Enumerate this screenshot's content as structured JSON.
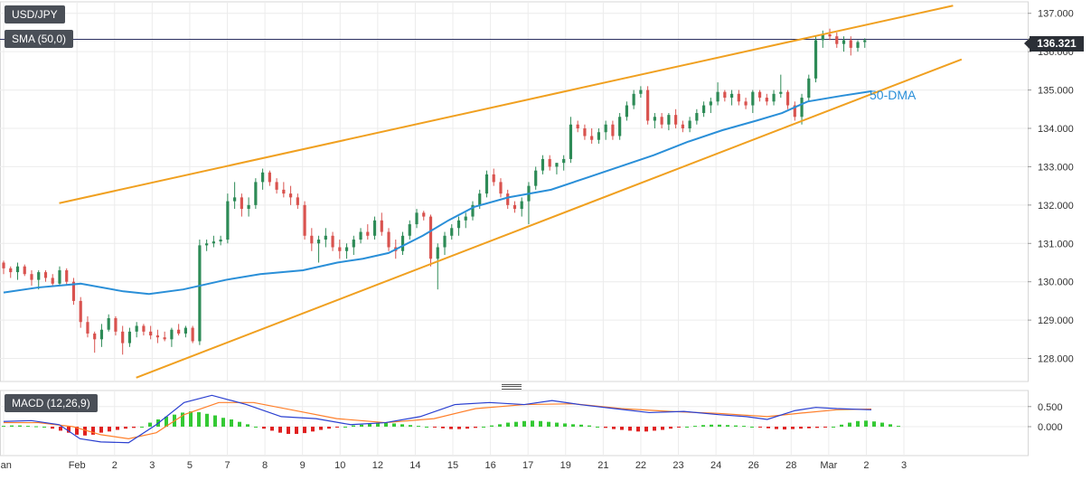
{
  "symbol": "USD/JPY",
  "indicator_sma": "SMA (50,0)",
  "indicator_macd": "MACD (12,26,9)",
  "last_price": "136.321",
  "dma_label": "50-DMA",
  "colors": {
    "up": "#2e8b57",
    "down": "#d9534f",
    "sma": "#2a8fd8",
    "trend": "#f0a020",
    "macd_line": "#2a3fd0",
    "signal_line": "#ff7f2a",
    "hist_pos": "#34c934",
    "hist_neg": "#e02020",
    "tag_bg": "#4a4f57"
  },
  "chart_data": [
    {
      "type": "candlestick",
      "title": "USD/JPY",
      "ylim": [
        127.4,
        137.3
      ],
      "y_ticks": [
        "137.000",
        "136.000",
        "135.000",
        "134.000",
        "133.000",
        "132.000",
        "131.000",
        "130.000",
        "129.000",
        "128.000"
      ],
      "y_tick_values": [
        137,
        136,
        135,
        134,
        133,
        132,
        131,
        130,
        129,
        128
      ],
      "x_tick_labels": [
        "Jan",
        "Feb",
        "2",
        "3",
        "5",
        "7",
        "8",
        "9",
        "10",
        "12",
        "14",
        "15",
        "16",
        "17",
        "19",
        "21",
        "22",
        "23",
        "24",
        "26",
        "28",
        "Mar",
        "2",
        "3"
      ],
      "x_tick_index": [
        0,
        13,
        23,
        33,
        43,
        53,
        63,
        73,
        83,
        93,
        103,
        113,
        123,
        133,
        143,
        153,
        163,
        173,
        183,
        193,
        203,
        213,
        223,
        233
      ],
      "last_price": 136.321,
      "candles": [
        [
          130.5,
          130.55,
          130.2,
          130.35
        ],
        [
          130.35,
          130.4,
          130.1,
          130.25
        ],
        [
          130.25,
          130.5,
          130.05,
          130.4
        ],
        [
          130.4,
          130.45,
          130.15,
          130.2
        ],
        [
          130.2,
          130.3,
          129.9,
          130.05
        ],
        [
          130.05,
          130.3,
          129.8,
          130.25
        ],
        [
          130.25,
          130.3,
          130.0,
          130.1
        ],
        [
          130.1,
          130.2,
          129.9,
          129.95
        ],
        [
          129.95,
          130.4,
          129.9,
          130.3
        ],
        [
          130.3,
          130.35,
          129.9,
          130.0
        ],
        [
          130.0,
          130.1,
          129.4,
          129.5
        ],
        [
          129.5,
          129.6,
          128.8,
          128.95
        ],
        [
          128.95,
          129.1,
          128.55,
          128.65
        ],
        [
          128.65,
          128.7,
          128.15,
          128.5
        ],
        [
          128.5,
          128.9,
          128.3,
          128.75
        ],
        [
          128.75,
          129.15,
          128.7,
          129.05
        ],
        [
          129.05,
          129.1,
          128.6,
          128.7
        ],
        [
          128.7,
          128.85,
          128.1,
          128.4
        ],
        [
          128.4,
          128.8,
          128.3,
          128.7
        ],
        [
          128.7,
          128.95,
          128.55,
          128.85
        ],
        [
          128.85,
          128.9,
          128.6,
          128.7
        ],
        [
          128.7,
          128.85,
          128.5,
          128.6
        ],
        [
          128.6,
          128.75,
          128.4,
          128.55
        ],
        [
          128.55,
          128.7,
          128.45,
          128.5
        ],
        [
          128.5,
          128.8,
          128.3,
          128.75
        ],
        [
          128.75,
          128.9,
          128.6,
          128.65
        ],
        [
          128.65,
          128.85,
          128.55,
          128.8
        ],
        [
          128.8,
          128.85,
          128.4,
          128.45
        ],
        [
          128.45,
          131.1,
          128.35,
          130.95
        ],
        [
          130.95,
          131.1,
          130.8,
          131.0
        ],
        [
          131.0,
          131.2,
          130.9,
          131.05
        ],
        [
          131.05,
          131.2,
          130.95,
          131.1
        ],
        [
          131.1,
          132.3,
          131.0,
          132.1
        ],
        [
          132.1,
          132.6,
          131.9,
          132.2
        ],
        [
          132.2,
          132.3,
          131.7,
          131.9
        ],
        [
          131.9,
          132.2,
          131.7,
          132.0
        ],
        [
          132.0,
          132.7,
          131.9,
          132.6
        ],
        [
          132.6,
          132.95,
          132.4,
          132.85
        ],
        [
          132.85,
          132.9,
          132.5,
          132.6
        ],
        [
          132.6,
          132.7,
          132.3,
          132.4
        ],
        [
          132.4,
          132.6,
          132.2,
          132.3
        ],
        [
          132.3,
          132.5,
          132.0,
          132.2
        ],
        [
          132.2,
          132.3,
          131.9,
          132.0
        ],
        [
          132.0,
          132.1,
          131.1,
          131.2
        ],
        [
          131.2,
          131.4,
          130.8,
          131.0
        ],
        [
          131.0,
          131.2,
          130.5,
          131.1
        ],
        [
          131.1,
          131.4,
          130.9,
          131.2
        ],
        [
          131.2,
          131.3,
          130.8,
          130.9
        ],
        [
          130.9,
          131.1,
          130.6,
          130.8
        ],
        [
          130.8,
          131.0,
          130.6,
          130.9
        ],
        [
          130.9,
          131.2,
          130.7,
          131.1
        ],
        [
          131.1,
          131.4,
          131.0,
          131.3
        ],
        [
          131.3,
          131.5,
          131.1,
          131.2
        ],
        [
          131.2,
          131.7,
          131.1,
          131.6
        ],
        [
          131.6,
          131.8,
          131.2,
          131.3
        ],
        [
          131.3,
          131.4,
          130.8,
          130.9
        ],
        [
          130.9,
          131.1,
          130.6,
          130.8
        ],
        [
          130.8,
          131.3,
          130.7,
          131.2
        ],
        [
          131.2,
          131.6,
          131.1,
          131.5
        ],
        [
          131.5,
          131.9,
          131.4,
          131.8
        ],
        [
          131.8,
          131.85,
          131.6,
          131.7
        ],
        [
          131.7,
          131.75,
          130.4,
          130.6
        ],
        [
          130.6,
          131.0,
          129.8,
          130.9
        ],
        [
          130.9,
          131.3,
          130.7,
          131.2
        ],
        [
          131.2,
          131.5,
          131.1,
          131.4
        ],
        [
          131.4,
          131.7,
          131.2,
          131.6
        ],
        [
          131.6,
          131.8,
          131.4,
          131.7
        ],
        [
          131.7,
          132.1,
          131.6,
          132.0
        ],
        [
          132.0,
          132.4,
          131.9,
          132.3
        ],
        [
          132.3,
          132.9,
          132.2,
          132.8
        ],
        [
          132.8,
          132.95,
          132.5,
          132.6
        ],
        [
          132.6,
          132.7,
          132.2,
          132.3
        ],
        [
          132.3,
          132.4,
          131.9,
          132.0
        ],
        [
          132.0,
          132.1,
          131.8,
          131.9
        ],
        [
          131.9,
          132.2,
          131.7,
          132.1
        ],
        [
          132.1,
          132.6,
          131.5,
          132.5
        ],
        [
          132.5,
          133.0,
          132.4,
          132.9
        ],
        [
          132.9,
          133.3,
          132.8,
          133.2
        ],
        [
          133.2,
          133.3,
          132.9,
          133.0
        ],
        [
          133.0,
          133.1,
          132.8,
          133.1
        ],
        [
          133.1,
          133.3,
          132.9,
          133.2
        ],
        [
          133.2,
          134.3,
          133.1,
          134.1
        ],
        [
          134.1,
          134.2,
          133.9,
          134.0
        ],
        [
          134.0,
          134.1,
          133.7,
          133.8
        ],
        [
          133.8,
          134.0,
          133.6,
          133.7
        ],
        [
          133.7,
          134.0,
          133.6,
          133.9
        ],
        [
          133.9,
          134.2,
          133.7,
          134.1
        ],
        [
          134.1,
          134.2,
          133.7,
          133.8
        ],
        [
          133.8,
          134.4,
          133.7,
          134.3
        ],
        [
          134.3,
          134.7,
          134.2,
          134.6
        ],
        [
          134.6,
          135.0,
          134.5,
          134.9
        ],
        [
          134.9,
          135.1,
          134.8,
          135.0
        ],
        [
          135.0,
          135.1,
          134.1,
          134.2
        ],
        [
          134.2,
          134.4,
          134.0,
          134.3
        ],
        [
          134.3,
          134.4,
          134.0,
          134.1
        ],
        [
          134.1,
          134.4,
          133.95,
          134.35
        ],
        [
          134.35,
          134.5,
          134.0,
          134.1
        ],
        [
          134.1,
          134.2,
          133.9,
          134.0
        ],
        [
          134.0,
          134.3,
          133.9,
          134.2
        ],
        [
          134.2,
          134.5,
          134.1,
          134.4
        ],
        [
          134.4,
          134.7,
          134.3,
          134.6
        ],
        [
          134.6,
          134.8,
          134.4,
          134.7
        ],
        [
          134.7,
          135.2,
          134.6,
          134.95
        ],
        [
          134.95,
          135.0,
          134.7,
          134.8
        ],
        [
          134.8,
          135.0,
          134.6,
          134.9
        ],
        [
          134.9,
          135.0,
          134.6,
          134.7
        ],
        [
          134.7,
          134.8,
          134.5,
          134.6
        ],
        [
          134.6,
          135.0,
          134.4,
          134.95
        ],
        [
          134.95,
          135.0,
          134.7,
          134.8
        ],
        [
          134.8,
          134.9,
          134.6,
          134.7
        ],
        [
          134.7,
          135.0,
          134.6,
          134.9
        ],
        [
          134.9,
          135.4,
          134.8,
          134.95
        ],
        [
          134.95,
          135.0,
          134.5,
          134.6
        ],
        [
          134.6,
          134.7,
          134.2,
          134.3
        ],
        [
          134.3,
          134.9,
          134.1,
          134.8
        ],
        [
          134.8,
          135.4,
          134.7,
          135.3
        ],
        [
          135.3,
          136.4,
          135.2,
          136.3
        ],
        [
          136.3,
          136.55,
          136.1,
          136.45
        ],
        [
          136.45,
          136.6,
          136.3,
          136.4
        ],
        [
          136.4,
          136.5,
          136.1,
          136.2
        ],
        [
          136.2,
          136.4,
          136.0,
          136.3
        ],
        [
          136.3,
          136.4,
          135.9,
          136.1
        ],
        [
          136.1,
          136.3,
          136.0,
          136.25
        ],
        [
          136.25,
          136.35,
          136.1,
          136.3
        ]
      ],
      "sma": [
        [
          0,
          129.72
        ],
        [
          8,
          129.85
        ],
        [
          18,
          129.95
        ],
        [
          28,
          129.75
        ],
        [
          34,
          129.68
        ],
        [
          42,
          129.8
        ],
        [
          52,
          130.05
        ],
        [
          60,
          130.2
        ],
        [
          70,
          130.3
        ],
        [
          78,
          130.5
        ],
        [
          84,
          130.6
        ],
        [
          90,
          130.75
        ],
        [
          98,
          131.2
        ],
        [
          104,
          131.6
        ],
        [
          110,
          131.95
        ],
        [
          118,
          132.2
        ],
        [
          128,
          132.4
        ],
        [
          136,
          132.7
        ],
        [
          144,
          133.0
        ],
        [
          152,
          133.3
        ],
        [
          160,
          133.65
        ],
        [
          168,
          133.95
        ],
        [
          176,
          134.2
        ],
        [
          182,
          134.4
        ],
        [
          188,
          134.7
        ],
        [
          196,
          134.85
        ],
        [
          203,
          134.97
        ]
      ],
      "trend_upper": [
        [
          13,
          132.05
        ],
        [
          222,
          137.2
        ]
      ],
      "trend_lower": [
        [
          31,
          127.5
        ],
        [
          224,
          135.8
        ]
      ]
    },
    {
      "type": "macd",
      "title": "MACD (12,26,9)",
      "ylim": [
        -0.45,
        0.9
      ],
      "y_ticks": [
        "0.500",
        "0.000"
      ],
      "y_tick_values": [
        0.5,
        0.0
      ],
      "macd": [
        [
          0,
          0.13
        ],
        [
          8,
          0.15
        ],
        [
          16,
          0.05
        ],
        [
          22,
          -0.3
        ],
        [
          28,
          -0.38
        ],
        [
          36,
          -0.4
        ],
        [
          44,
          0.05
        ],
        [
          52,
          0.6
        ],
        [
          60,
          0.78
        ],
        [
          70,
          0.55
        ],
        [
          80,
          0.25
        ],
        [
          90,
          0.2
        ],
        [
          100,
          0.05
        ],
        [
          110,
          0.1
        ],
        [
          120,
          0.25
        ],
        [
          130,
          0.55
        ],
        [
          140,
          0.6
        ],
        [
          150,
          0.55
        ],
        [
          158,
          0.65
        ],
        [
          166,
          0.55
        ],
        [
          176,
          0.45
        ],
        [
          186,
          0.35
        ],
        [
          196,
          0.38
        ],
        [
          206,
          0.3
        ],
        [
          214,
          0.25
        ],
        [
          220,
          0.18
        ],
        [
          228,
          0.4
        ],
        [
          234,
          0.48
        ],
        [
          240,
          0.45
        ],
        [
          250,
          0.42
        ]
      ],
      "signal": [
        [
          0,
          0.1
        ],
        [
          10,
          0.1
        ],
        [
          20,
          0.0
        ],
        [
          28,
          -0.2
        ],
        [
          36,
          -0.3
        ],
        [
          44,
          -0.15
        ],
        [
          52,
          0.3
        ],
        [
          62,
          0.6
        ],
        [
          72,
          0.6
        ],
        [
          84,
          0.4
        ],
        [
          96,
          0.2
        ],
        [
          110,
          0.1
        ],
        [
          124,
          0.2
        ],
        [
          136,
          0.45
        ],
        [
          150,
          0.55
        ],
        [
          164,
          0.57
        ],
        [
          178,
          0.45
        ],
        [
          192,
          0.38
        ],
        [
          206,
          0.33
        ],
        [
          220,
          0.25
        ],
        [
          230,
          0.34
        ],
        [
          240,
          0.42
        ],
        [
          250,
          0.44
        ]
      ],
      "hist": [
        0.02,
        0.03,
        0.03,
        0.02,
        0.01,
        0.0,
        -0.05,
        -0.1,
        -0.15,
        -0.2,
        -0.22,
        -0.2,
        -0.15,
        -0.12,
        -0.08,
        -0.05,
        -0.03,
        0.0,
        0.1,
        0.18,
        0.25,
        0.3,
        0.35,
        0.38,
        0.36,
        0.32,
        0.28,
        0.22,
        0.18,
        0.12,
        0.06,
        0.0,
        -0.05,
        -0.1,
        -0.15,
        -0.18,
        -0.18,
        -0.16,
        -0.12,
        -0.08,
        -0.05,
        -0.02,
        0.0,
        0.03,
        0.05,
        0.08,
        0.1,
        0.1,
        0.08,
        0.06,
        0.04,
        0.02,
        0.0,
        -0.02,
        -0.04,
        -0.06,
        -0.06,
        -0.05,
        -0.03,
        0.0,
        0.03,
        0.06,
        0.1,
        0.12,
        0.14,
        0.15,
        0.14,
        0.12,
        0.1,
        0.08,
        0.06,
        0.05,
        0.03,
        0.0,
        -0.03,
        -0.06,
        -0.08,
        -0.1,
        -0.12,
        -0.12,
        -0.1,
        -0.08,
        -0.05,
        -0.02,
        0.0,
        0.02,
        0.04,
        0.05,
        0.05,
        0.04,
        0.03,
        0.02,
        0.0,
        -0.02,
        -0.04,
        -0.06,
        -0.07,
        -0.06,
        -0.05,
        -0.04,
        -0.03,
        -0.02,
        0.0,
        0.05,
        0.1,
        0.14,
        0.15,
        0.13,
        0.1,
        0.06,
        0.02
      ]
    }
  ]
}
